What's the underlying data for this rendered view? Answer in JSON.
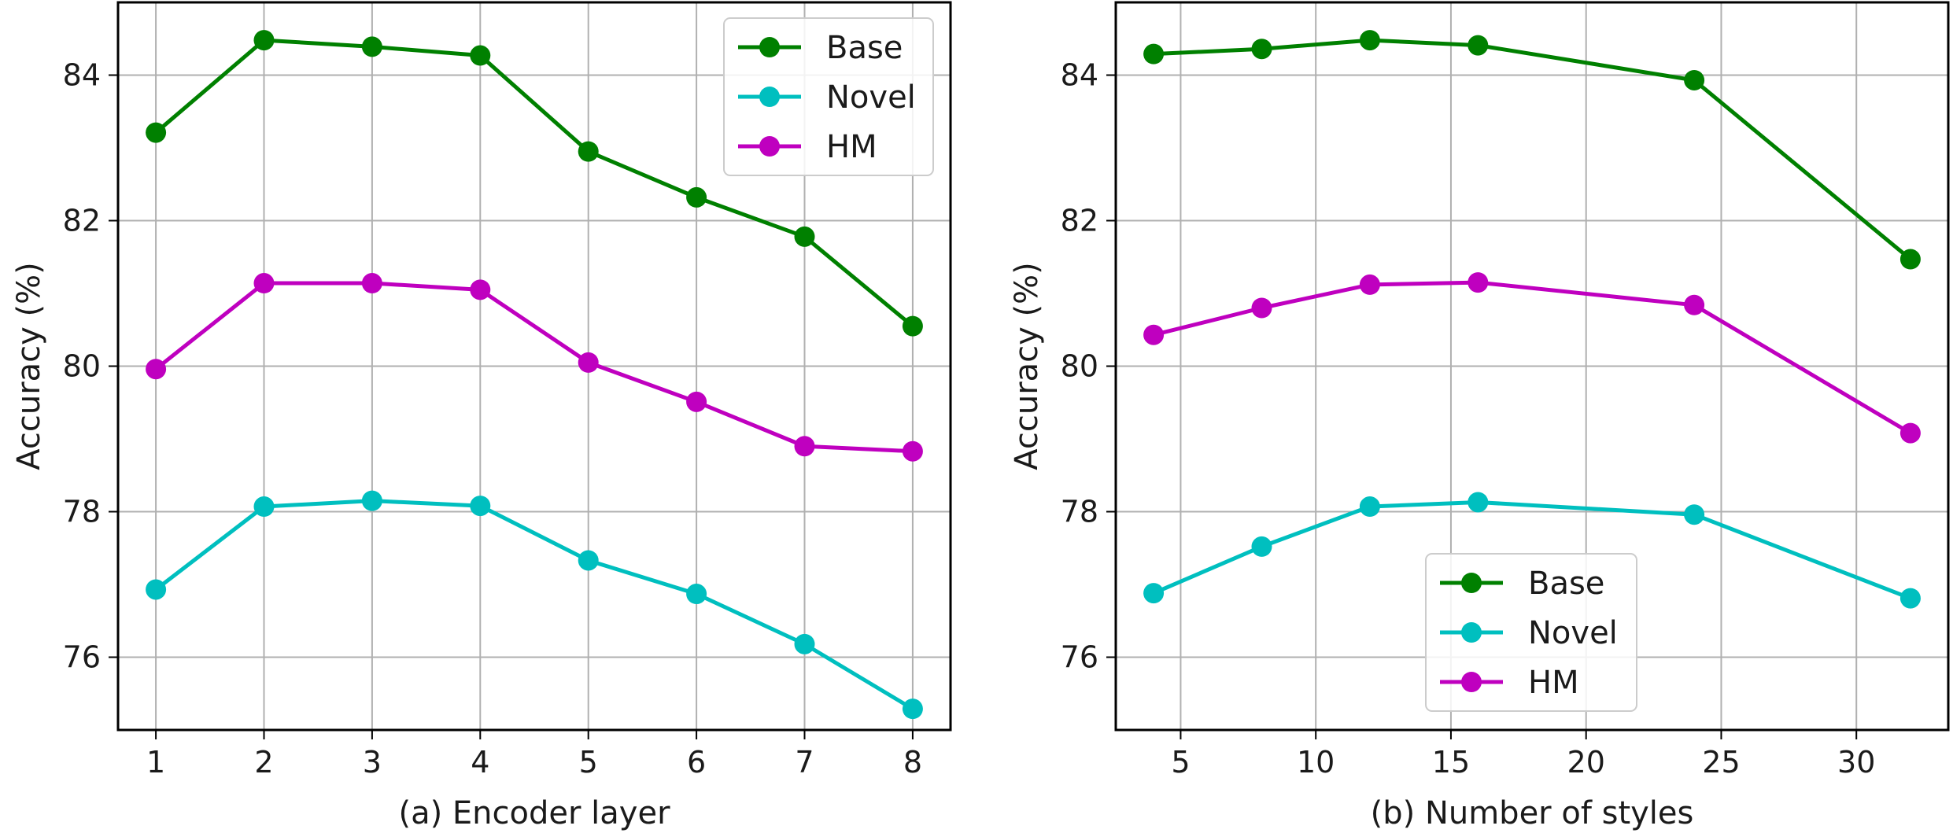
{
  "chart_data": [
    {
      "type": "line",
      "title": "",
      "xlabel": "(a) Encoder layer",
      "ylabel": "Accuracy (%)",
      "xlim": [
        0.65,
        8.35
      ],
      "ylim": [
        75.0,
        85.0
      ],
      "xticks": [
        1,
        2,
        3,
        4,
        5,
        6,
        7,
        8
      ],
      "xtick_labels": [
        "1",
        "2",
        "3",
        "4",
        "5",
        "6",
        "7",
        "8"
      ],
      "yticks": [
        76,
        78,
        80,
        82,
        84
      ],
      "ytick_labels": [
        "76",
        "78",
        "80",
        "82",
        "84"
      ],
      "grid": true,
      "legend_position": "top-right",
      "x": [
        1,
        2,
        3,
        4,
        5,
        6,
        7,
        8
      ],
      "series": [
        {
          "name": "Base",
          "color": "#008000",
          "values": [
            83.21,
            84.48,
            84.39,
            84.27,
            82.95,
            82.32,
            81.78,
            80.55
          ]
        },
        {
          "name": "Novel",
          "color": "#00bfbf",
          "values": [
            76.93,
            78.07,
            78.15,
            78.08,
            77.33,
            76.87,
            76.18,
            75.29
          ]
        },
        {
          "name": "HM",
          "color": "#bf00bf",
          "values": [
            79.96,
            81.14,
            81.14,
            81.05,
            80.05,
            79.51,
            78.9,
            78.83
          ]
        }
      ]
    },
    {
      "type": "line",
      "title": "",
      "xlabel": "(b) Number of styles",
      "ylabel": "Accuracy (%)",
      "xlim": [
        2.6,
        33.4
      ],
      "ylim": [
        75.0,
        85.0
      ],
      "xticks": [
        5,
        10,
        15,
        20,
        25,
        30
      ],
      "xtick_labels": [
        "5",
        "10",
        "15",
        "20",
        "25",
        "30"
      ],
      "yticks": [
        76,
        78,
        80,
        82,
        84
      ],
      "ytick_labels": [
        "76",
        "78",
        "80",
        "82",
        "84"
      ],
      "grid": true,
      "legend_position": "lower-center",
      "x": [
        4,
        8,
        12,
        16,
        24,
        32
      ],
      "series": [
        {
          "name": "Base",
          "color": "#008000",
          "values": [
            84.29,
            84.36,
            84.48,
            84.41,
            83.93,
            81.47
          ]
        },
        {
          "name": "Novel",
          "color": "#00bfbf",
          "values": [
            76.88,
            77.52,
            78.07,
            78.13,
            77.96,
            76.81
          ]
        },
        {
          "name": "HM",
          "color": "#bf00bf",
          "values": [
            80.43,
            80.8,
            81.12,
            81.15,
            80.84,
            79.08
          ]
        }
      ]
    }
  ]
}
